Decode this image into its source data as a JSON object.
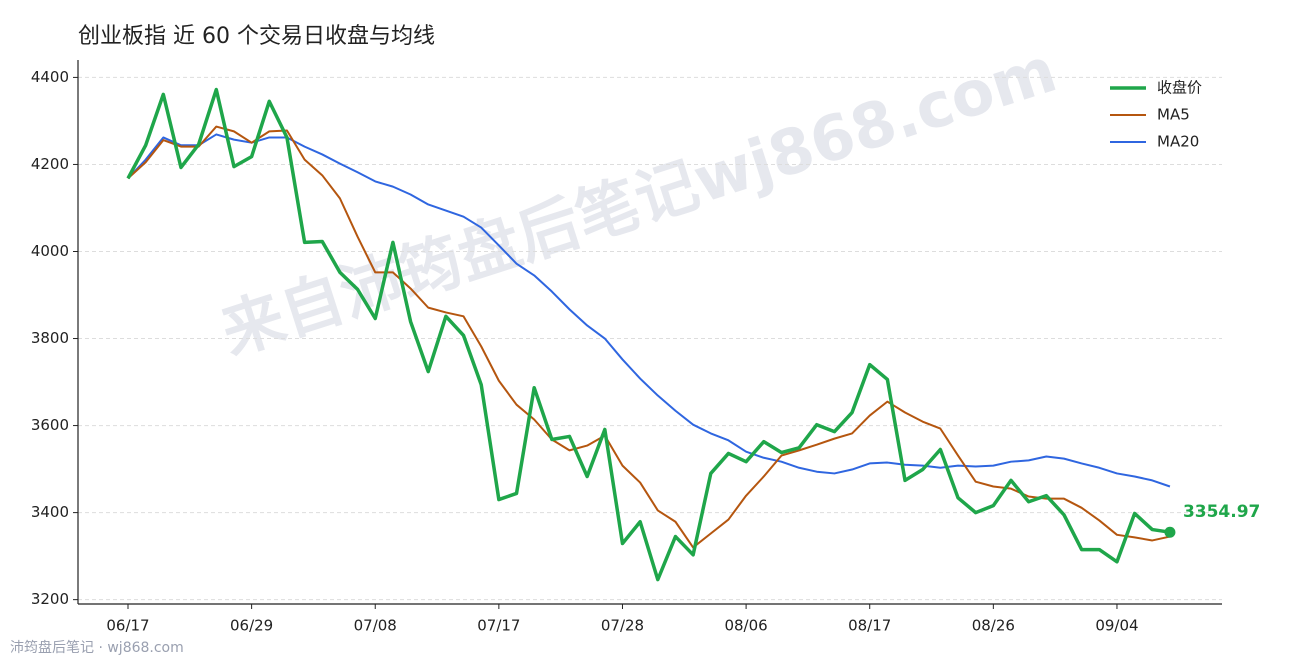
{
  "chart_data": {
    "type": "line",
    "title": "创业板指 近 60 个交易日收盘与均线",
    "watermark": "来自沛筠盘后笔记wj868.com",
    "footer": "沛筠盘后笔记 · wj868.com",
    "categories": [
      "06/17",
      null,
      null,
      null,
      null,
      null,
      null,
      "06/29",
      null,
      null,
      null,
      null,
      null,
      null,
      "07/08",
      null,
      null,
      null,
      null,
      null,
      null,
      "07/17",
      null,
      null,
      null,
      null,
      null,
      null,
      "07/28",
      null,
      null,
      null,
      null,
      null,
      null,
      "08/06",
      null,
      null,
      null,
      null,
      null,
      null,
      "08/17",
      null,
      null,
      null,
      null,
      null,
      null,
      "08/26",
      null,
      null,
      null,
      null,
      null,
      null,
      "09/04",
      null,
      null,
      null
    ],
    "series": [
      {
        "name": "收盘价",
        "color": "#1fa64a",
        "values": [
          4168,
          4244,
          4361,
          4193,
          4246,
          4372,
          4195,
          4218,
          4345,
          4262,
          4021,
          4023,
          3952,
          3913,
          3846,
          4021,
          3839,
          3724,
          3851,
          3807,
          3694,
          3430,
          3444,
          3687,
          3568,
          3575,
          3483,
          3591,
          3329,
          3379,
          3246,
          3345,
          3303,
          3490,
          3536,
          3517,
          3563,
          3538,
          3549,
          3602,
          3586,
          3630,
          3740,
          3706,
          3474,
          3499,
          3545,
          3434,
          3400,
          3416,
          3474,
          3425,
          3439,
          3395,
          3315,
          3315,
          3287,
          3398,
          3361,
          3354.97
        ]
      },
      {
        "name": "MA5",
        "color": "#b5560f",
        "values": [
          4168,
          4205,
          4256,
          4241,
          4241,
          4287,
          4276,
          4250,
          4276,
          4278,
          4211,
          4175,
          4122,
          4034,
          3952,
          3952,
          3915,
          3871,
          3860,
          3851,
          3782,
          3703,
          3648,
          3614,
          3568,
          3543,
          3554,
          3577,
          3508,
          3469,
          3405,
          3379,
          3320,
          3352,
          3384,
          3439,
          3483,
          3531,
          3543,
          3556,
          3570,
          3582,
          3623,
          3655,
          3630,
          3609,
          3593,
          3531,
          3471,
          3460,
          3455,
          3437,
          3432,
          3432,
          3411,
          3382,
          3349,
          3343,
          3336,
          3345
        ]
      },
      {
        "name": "MA20",
        "color": "#2f66e0",
        "values": [
          4168,
          4211,
          4262,
          4244,
          4244,
          4269,
          4257,
          4250,
          4262,
          4262,
          4241,
          4223,
          4202,
          4182,
          4161,
          4149,
          4131,
          4108,
          4094,
          4080,
          4055,
          4014,
          3972,
          3945,
          3908,
          3867,
          3830,
          3800,
          3752,
          3708,
          3669,
          3634,
          3602,
          3582,
          3566,
          3540,
          3526,
          3517,
          3503,
          3494,
          3490,
          3499,
          3513,
          3515,
          3510,
          3508,
          3503,
          3508,
          3506,
          3508,
          3517,
          3520,
          3529,
          3524,
          3513,
          3503,
          3490,
          3483,
          3474,
          3460
        ]
      }
    ],
    "ylim": [
      3190,
      4440
    ],
    "yticks": [
      3200,
      3400,
      3600,
      3800,
      4000,
      4200,
      4400
    ],
    "grid": true,
    "legend": "upper-right"
  }
}
